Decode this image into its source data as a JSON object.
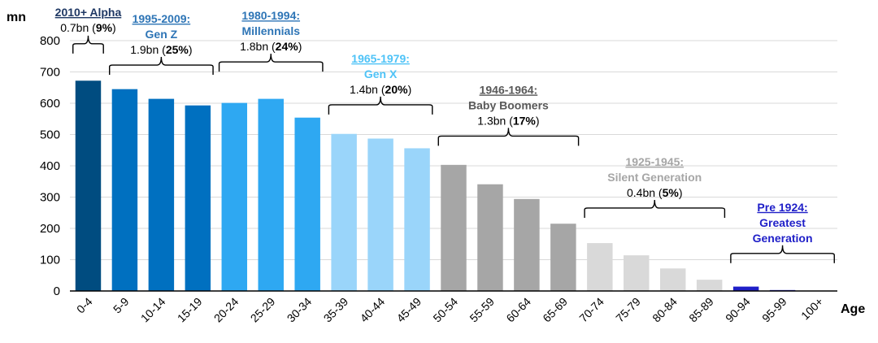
{
  "chart_data": {
    "type": "bar",
    "ylabel": "mn",
    "xlabel": "Age",
    "ylim": [
      0,
      800
    ],
    "yticks": [
      0,
      100,
      200,
      300,
      400,
      500,
      600,
      700,
      800
    ],
    "grid": true,
    "categories": [
      "0-4",
      "5-9",
      "10-14",
      "15-19",
      "20-24",
      "25-29",
      "30-34",
      "35-39",
      "40-44",
      "45-49",
      "50-54",
      "55-59",
      "60-64",
      "65-69",
      "70-74",
      "75-79",
      "80-84",
      "85-89",
      "90-94",
      "95-99",
      "100+"
    ],
    "values": [
      672,
      645,
      614,
      593,
      601,
      614,
      554,
      502,
      487,
      456,
      403,
      341,
      294,
      215,
      153,
      114,
      72,
      36,
      14,
      3,
      1
    ],
    "bar_colors": [
      "#004C80",
      "#0070C0",
      "#0070C0",
      "#0070C0",
      "#2EA8F2",
      "#2EA8F2",
      "#2EA8F2",
      "#9AD5FA",
      "#9AD5FA",
      "#9AD5FA",
      "#A6A6A6",
      "#A6A6A6",
      "#A6A6A6",
      "#A6A6A6",
      "#D9D9D9",
      "#D9D9D9",
      "#D9D9D9",
      "#D9D9D9",
      "#1F1FC8",
      "#1F1FC8",
      "#1F1FC8"
    ],
    "generations": [
      {
        "first_bar": 0,
        "last_bar": 0,
        "lines": [
          {
            "text": "2010+ Alpha",
            "underline": true,
            "bold": true
          },
          {
            "text": "0.7bn (9%)",
            "share_bold": "9%"
          }
        ],
        "color": "#1F3864",
        "brace_level": 790
      },
      {
        "first_bar": 1,
        "last_bar": 3,
        "lines": [
          {
            "text": "1995-2009:",
            "underline": true,
            "bold": true
          },
          {
            "text": "Gen Z",
            "bold": true
          },
          {
            "text": "1.9bn (25%)",
            "share_bold": "25%"
          }
        ],
        "color": "#2E75B6",
        "brace_level": 722
      },
      {
        "first_bar": 4,
        "last_bar": 6,
        "lines": [
          {
            "text": "1980-1994:",
            "underline": true,
            "bold": true
          },
          {
            "text": "Millennials",
            "bold": true
          },
          {
            "text": "1.8bn (24%)",
            "share_bold": "24%"
          }
        ],
        "color": "#2E75B6",
        "brace_level": 732
      },
      {
        "first_bar": 7,
        "last_bar": 9,
        "lines": [
          {
            "text": "1965-1979:",
            "underline": true,
            "bold": true
          },
          {
            "text": "Gen X",
            "bold": true
          },
          {
            "text": "1.4bn (20%)",
            "share_bold": "20%"
          }
        ],
        "color": "#4FC3F7",
        "brace_level": 595
      },
      {
        "first_bar": 10,
        "last_bar": 13,
        "lines": [
          {
            "text": "1946-1964:",
            "underline": true,
            "bold": true
          },
          {
            "text": "Baby Boomers",
            "bold": true
          },
          {
            "text": "1.3bn (17%)",
            "share_bold": "17%"
          }
        ],
        "color": "#595959",
        "brace_level": 495
      },
      {
        "first_bar": 14,
        "last_bar": 17,
        "lines": [
          {
            "text": "1925-1945:",
            "underline": true,
            "bold": true
          },
          {
            "text": "Silent Generation",
            "bold": true
          },
          {
            "text": "0.4bn (5%)",
            "share_bold": "5%"
          }
        ],
        "color": "#A6A6A6",
        "brace_level": 265
      },
      {
        "first_bar": 18,
        "last_bar": 20,
        "lines": [
          {
            "text": "Pre 1924:",
            "underline": true,
            "bold": true
          },
          {
            "text": "Greatest",
            "bold": true
          },
          {
            "text": "Generation",
            "bold": true
          }
        ],
        "color": "#1F1FC8",
        "brace_level": 120
      }
    ]
  }
}
